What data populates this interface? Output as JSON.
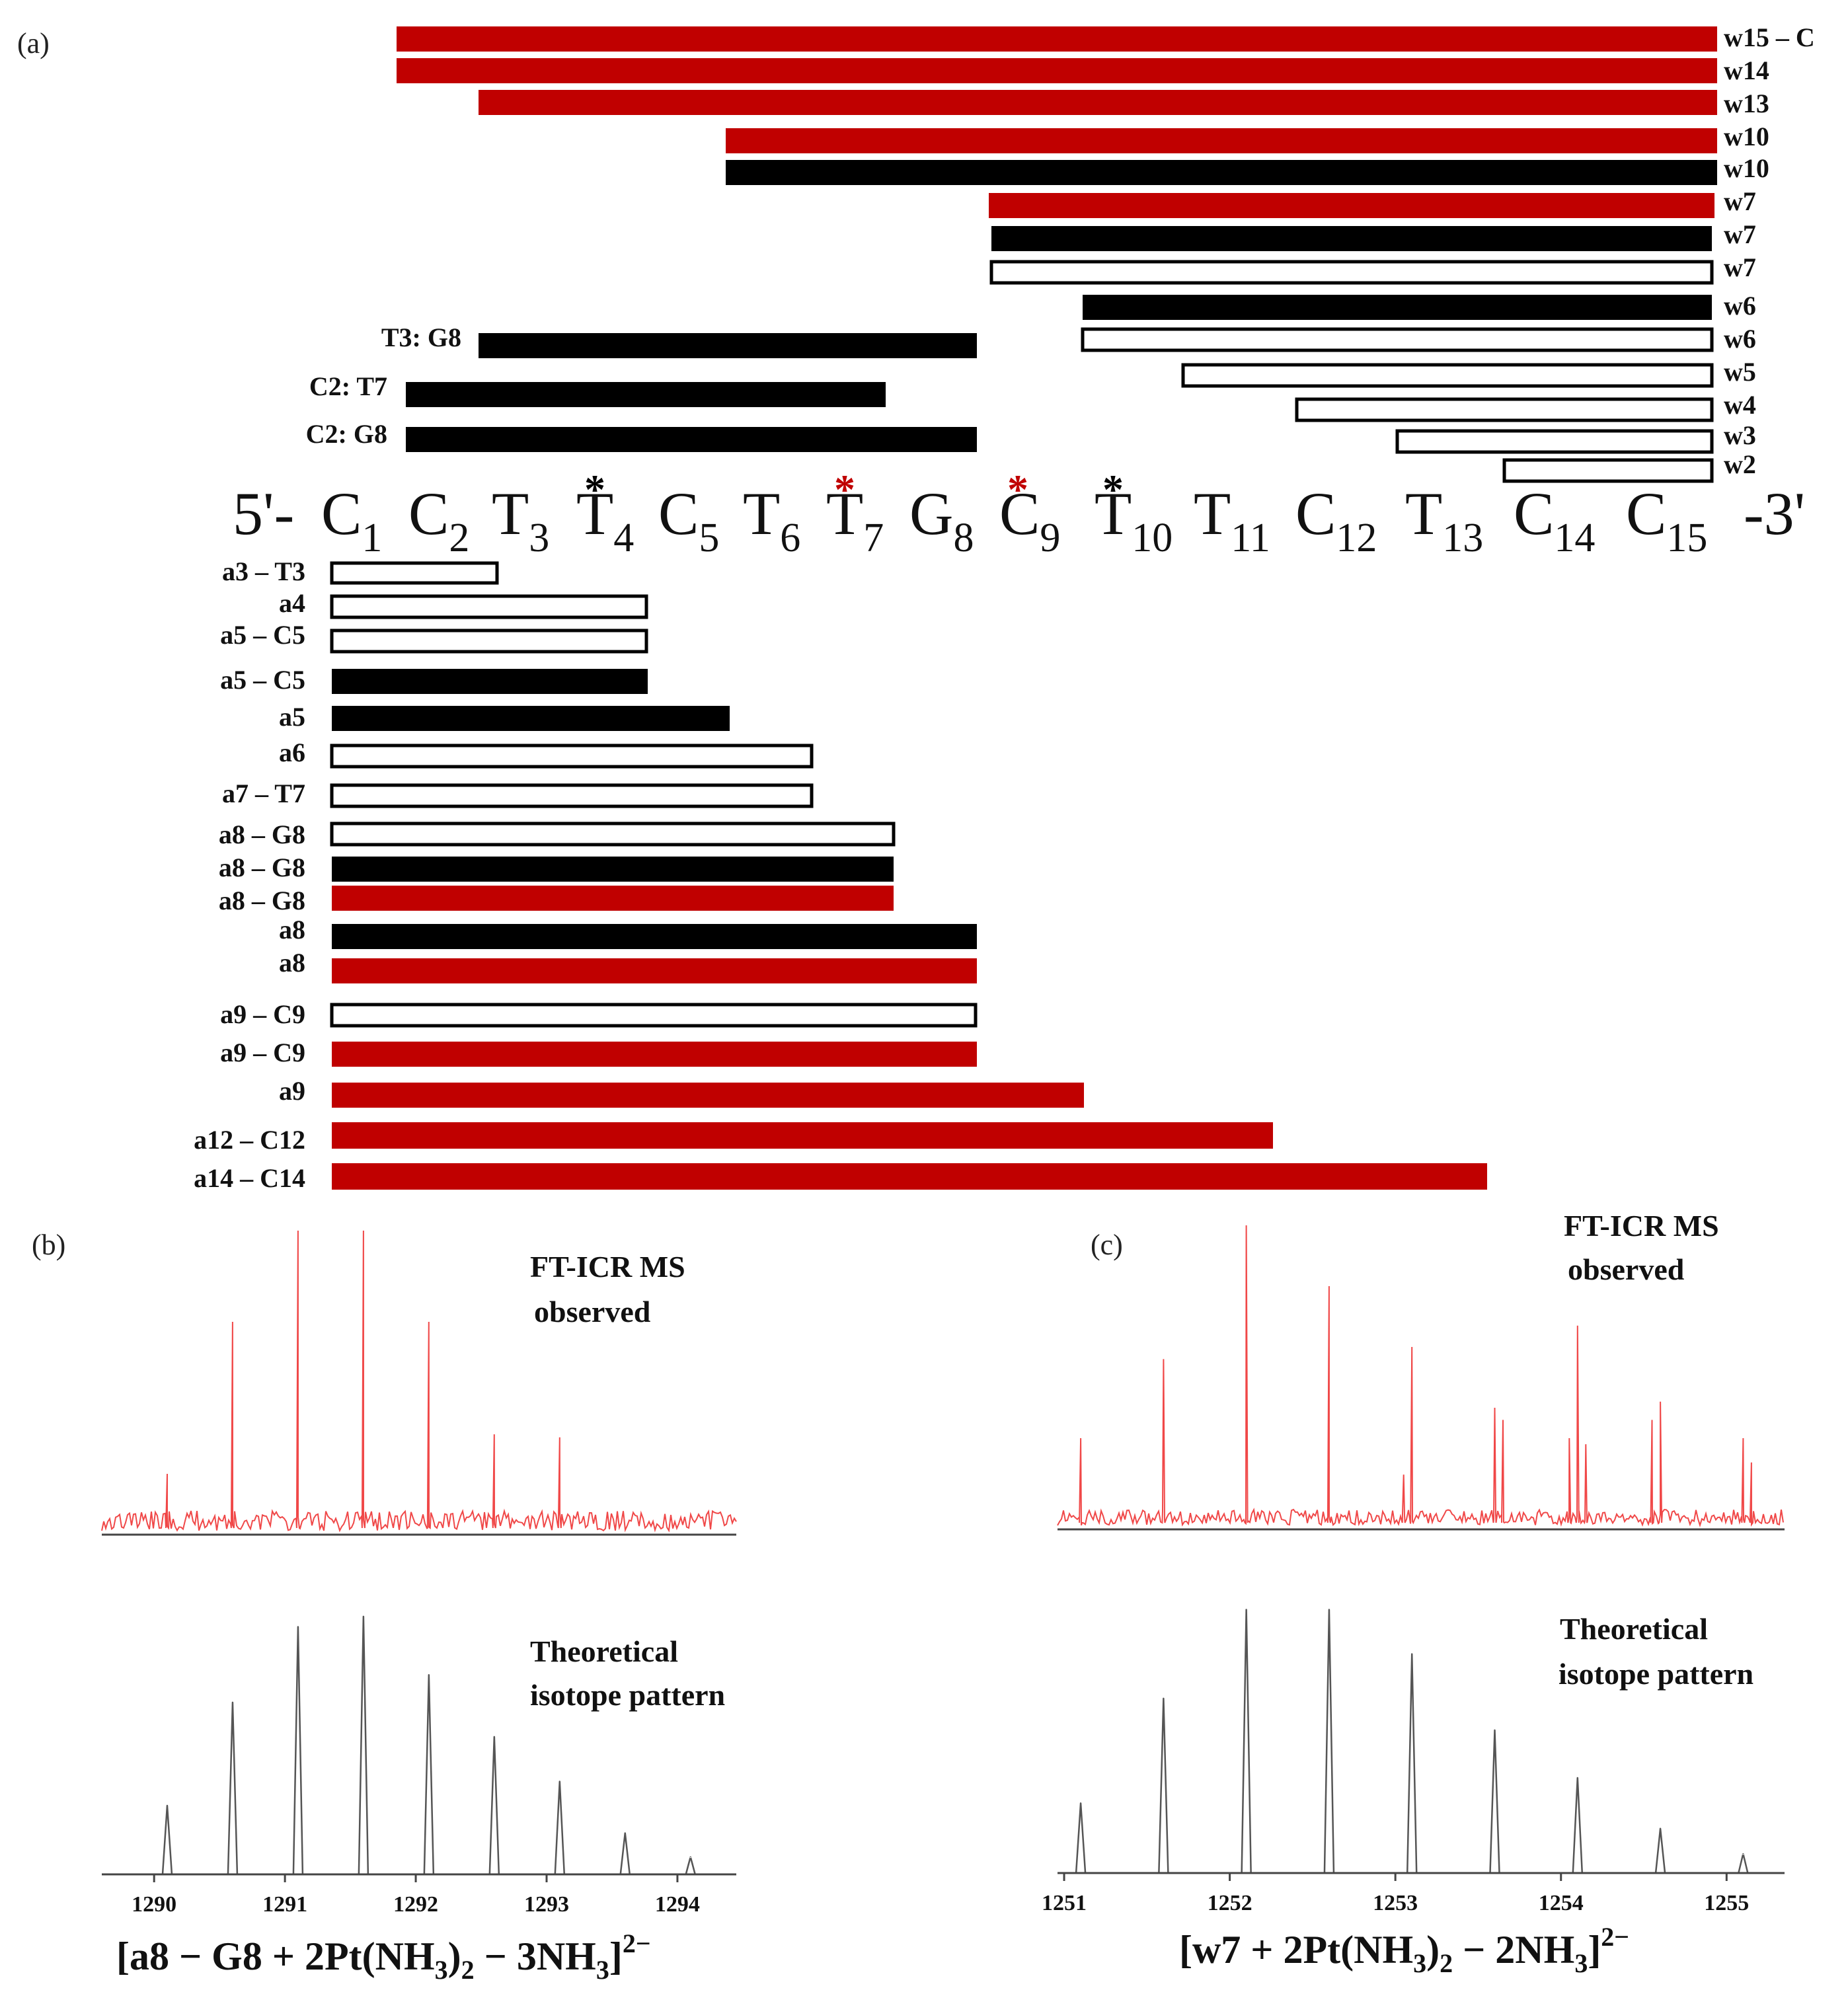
{
  "colors": {
    "red": "#c00000",
    "black": "#000000",
    "open": "#ffffff",
    "observed_line": "#f04848",
    "theory_line": "#555555",
    "axis": "#444444"
  },
  "chart_data": [
    {
      "type": "fragment-map",
      "panel_label": "(a)",
      "sequence": {
        "prefix": "5'-",
        "suffix": "-3'",
        "bases": [
          {
            "base": "C",
            "pos": "1"
          },
          {
            "base": "C",
            "pos": "2"
          },
          {
            "base": "T",
            "pos": "3"
          },
          {
            "base": "T",
            "pos": "4",
            "star": "*",
            "star_color": "black"
          },
          {
            "base": "C",
            "pos": "5"
          },
          {
            "base": "T",
            "pos": "6"
          },
          {
            "base": "T",
            "pos": "7",
            "star": "*",
            "star_color": "red"
          },
          {
            "base": "G",
            "pos": "8"
          },
          {
            "base": "C",
            "pos": "9",
            "star": "*",
            "star_color": "red"
          },
          {
            "base": "T",
            "pos": "10",
            "star": "*",
            "star_color": "black"
          },
          {
            "base": "T",
            "pos": "11"
          },
          {
            "base": "C",
            "pos": "12"
          },
          {
            "base": "T",
            "pos": "13"
          },
          {
            "base": "C",
            "pos": "14"
          },
          {
            "base": "C",
            "pos": "15"
          }
        ]
      },
      "w_fragments": [
        {
          "label": "w15 – C",
          "start": 2,
          "end": 15,
          "style": "red"
        },
        {
          "label": "w14",
          "start": 2,
          "end": 15,
          "style": "red"
        },
        {
          "label": "w13",
          "start": 3,
          "end": 15,
          "style": "red"
        },
        {
          "label": "w10",
          "start": 6,
          "end": 15,
          "style": "red"
        },
        {
          "label": "w10",
          "start": 6,
          "end": 15,
          "style": "black"
        },
        {
          "label": "w7",
          "start": 9,
          "end": 15,
          "style": "red"
        },
        {
          "label": "w7",
          "start": 9,
          "end": 15,
          "style": "black"
        },
        {
          "label": "w7",
          "start": 9,
          "end": 15,
          "style": "open"
        },
        {
          "label": "w6",
          "start": 10,
          "end": 15,
          "style": "black"
        },
        {
          "label": "w6",
          "start": 10,
          "end": 15,
          "style": "open"
        },
        {
          "label": "w5",
          "start": 11,
          "end": 15,
          "style": "open"
        },
        {
          "label": "w4",
          "start": 12,
          "end": 15,
          "style": "open"
        },
        {
          "label": "w3",
          "start": 13,
          "end": 15,
          "style": "open"
        },
        {
          "label": "w2",
          "start": 14,
          "end": 15,
          "style": "open"
        }
      ],
      "internal_fragments": [
        {
          "label": "T3: G8",
          "start": 3,
          "end": 8,
          "style": "black"
        },
        {
          "label": "C2: T7",
          "start": 2,
          "end": 7,
          "style": "black"
        },
        {
          "label": "C2: G8",
          "start": 2,
          "end": 8,
          "style": "black"
        }
      ],
      "a_fragments": [
        {
          "label": "a3 – T3",
          "start": 1,
          "end": 2.5,
          "style": "open"
        },
        {
          "label": "a4",
          "start": 1,
          "end": 4,
          "style": "open"
        },
        {
          "label": "a5 – C5",
          "start": 1,
          "end": 4,
          "style": "open"
        },
        {
          "label": "a5 – C5",
          "start": 1,
          "end": 4,
          "style": "black"
        },
        {
          "label": "a5",
          "start": 1,
          "end": 5,
          "style": "black"
        },
        {
          "label": "a6",
          "start": 1,
          "end": 6,
          "style": "open"
        },
        {
          "label": "a7 – T7",
          "start": 1,
          "end": 6,
          "style": "open"
        },
        {
          "label": "a8 – G8",
          "start": 1,
          "end": 7,
          "style": "open"
        },
        {
          "label": "a8 – G8",
          "start": 1,
          "end": 7,
          "style": "black"
        },
        {
          "label": "a8 – G8",
          "start": 1,
          "end": 7,
          "style": "red"
        },
        {
          "label": "a8",
          "start": 1,
          "end": 8,
          "style": "black"
        },
        {
          "label": "a8",
          "start": 1,
          "end": 8,
          "style": "red"
        },
        {
          "label": "a9 – C9",
          "start": 1,
          "end": 8,
          "style": "open"
        },
        {
          "label": "a9 – C9",
          "start": 1,
          "end": 8,
          "style": "red"
        },
        {
          "label": "a9",
          "start": 1,
          "end": 9,
          "style": "red"
        },
        {
          "label": "a12 – C12",
          "start": 1,
          "end": 11,
          "style": "red"
        },
        {
          "label": "a14 – C14",
          "start": 1,
          "end": 13,
          "style": "red"
        }
      ]
    },
    {
      "type": "spectrum",
      "panel_label": "(b)",
      "observed_label_1": "FT-ICR MS",
      "observed_label_2": "observed",
      "theory_label_1": "Theoretical",
      "theory_label_2": "isotope pattern",
      "xlim": [
        1289.6,
        1294.45
      ],
      "x_ticks": [
        "1290",
        "1291",
        "1292",
        "1293",
        "1294"
      ],
      "observed_peaks": {
        "x": [
          1290.1,
          1290.6,
          1291.1,
          1291.6,
          1292.1,
          1292.6,
          1293.1
        ],
        "y": [
          0.2,
          0.7,
          1.0,
          1.0,
          0.7,
          0.33,
          0.32
        ]
      },
      "theoretical_peaks": {
        "x": [
          1290.1,
          1290.6,
          1291.1,
          1291.6,
          1292.1,
          1292.6,
          1293.1,
          1293.6,
          1294.1
        ],
        "y": [
          0.2,
          0.5,
          0.72,
          0.75,
          0.58,
          0.4,
          0.27,
          0.12,
          0.05
        ]
      },
      "formula": {
        "a": "[a8 − G8 + 2Pt(NH",
        "b": "3",
        "c": ")",
        "d": "2",
        "e": " − 3NH",
        "f": "3",
        "g": "]",
        "h": "2−"
      }
    },
    {
      "type": "spectrum",
      "panel_label": "(c)",
      "observed_label_1": "FT-ICR MS",
      "observed_label_2": "observed",
      "theory_label_1": "Theoretical",
      "theory_label_2": "isotope pattern",
      "xlim": [
        1250.96,
        1255.35
      ],
      "x_ticks": [
        "1251",
        "1252",
        "1253",
        "1254",
        "1255"
      ],
      "observed_peaks": {
        "x": [
          1251.1,
          1251.6,
          1252.1,
          1252.6,
          1253.1,
          1253.6,
          1253.65,
          1254.1,
          1254.15,
          1254.55,
          1254.6,
          1255.1,
          1255.15,
          1253.05,
          1254.05
        ],
        "y": [
          0.3,
          0.56,
          1.0,
          0.8,
          0.6,
          0.4,
          0.36,
          0.67,
          0.28,
          0.36,
          0.42,
          0.3,
          0.22,
          0.18,
          0.3
        ]
      },
      "theoretical_peaks": {
        "x": [
          1251.1,
          1251.6,
          1252.1,
          1252.6,
          1253.1,
          1253.6,
          1254.1,
          1254.6,
          1255.1
        ],
        "y": [
          0.22,
          0.55,
          0.83,
          0.83,
          0.69,
          0.45,
          0.3,
          0.14,
          0.06
        ]
      },
      "formula": {
        "a": "[w7 + 2Pt(NH",
        "b": "3",
        "c": ")",
        "d": "2",
        "e": " − 2NH",
        "f": "3",
        "g": "]",
        "h": "2−"
      }
    }
  ]
}
